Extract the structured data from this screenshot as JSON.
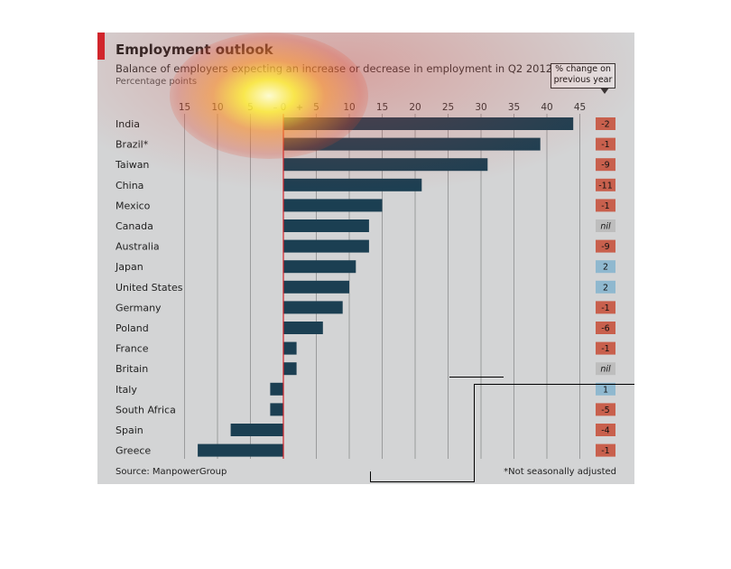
{
  "title": "Employment outlook",
  "subtitle": "Balance of employers expecting an increase or decrease in employment in Q2 2012",
  "units": "Percentage points",
  "change_header": "% change on previous year",
  "source": "Source: ManpowerGroup",
  "footnote": "*Not seasonally adjusted",
  "colors": {
    "bar": "#1b3f52",
    "negative_change": "#c8604d",
    "positive_change": "#8fb8cf",
    "nil_change": "#bdbdbd",
    "zero_line": "#d0232b"
  },
  "chart_data": {
    "type": "bar",
    "orientation": "horizontal",
    "title": "Employment outlook",
    "subtitle": "Balance of employers expecting an increase or decrease in employment in Q2 2012",
    "xlabel": "Percentage points",
    "xlim": [
      -15,
      45
    ],
    "ticks": [
      {
        "value": -15,
        "label": "15"
      },
      {
        "value": -10,
        "label": "10"
      },
      {
        "value": -5,
        "label": "5"
      },
      {
        "value": 0,
        "label": "0"
      },
      {
        "value": 5,
        "label": "5"
      },
      {
        "value": 10,
        "label": "10"
      },
      {
        "value": 15,
        "label": "15"
      },
      {
        "value": 20,
        "label": "20"
      },
      {
        "value": 25,
        "label": "25"
      },
      {
        "value": 30,
        "label": "30"
      },
      {
        "value": 35,
        "label": "35"
      },
      {
        "value": 40,
        "label": "40"
      },
      {
        "value": 45,
        "label": "45"
      }
    ],
    "sign_labels": {
      "minus": "–",
      "plus": "+"
    },
    "grid": true,
    "categories": [
      "India",
      "Brazil*",
      "Taiwan",
      "China",
      "Mexico",
      "Canada",
      "Australia",
      "Japan",
      "United States",
      "Germany",
      "Poland",
      "France",
      "Britain",
      "Italy",
      "South Africa",
      "Spain",
      "Greece"
    ],
    "values": [
      44,
      39,
      31,
      21,
      15,
      13,
      13,
      11,
      10,
      9,
      6,
      2,
      2,
      -2,
      -2,
      -8,
      -13
    ],
    "change_on_previous_year": [
      "-2",
      "-1",
      "-9",
      "-11",
      "-1",
      "nil",
      "-9",
      "2",
      "2",
      "-1",
      "-6",
      "-1",
      "nil",
      "1",
      "-5",
      "-4",
      "-1"
    ]
  }
}
